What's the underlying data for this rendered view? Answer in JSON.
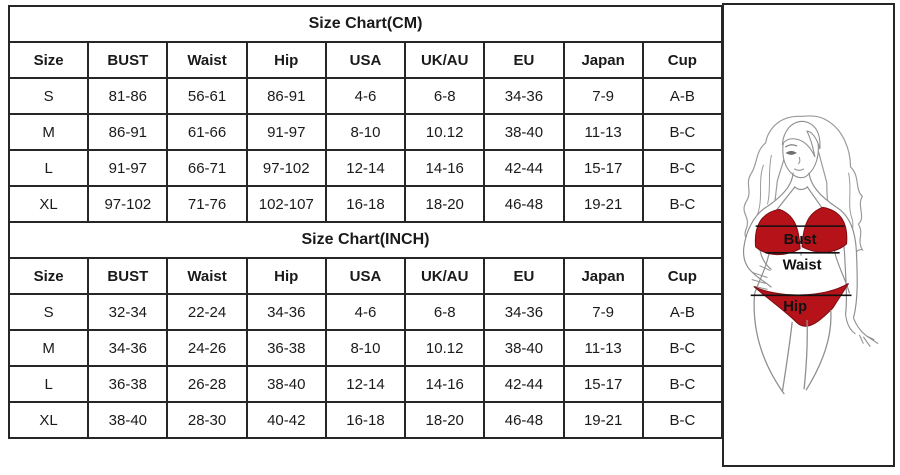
{
  "size_charts": [
    {
      "title": "Size Chart(CM)",
      "columns": [
        "Size",
        "BUST",
        "Waist",
        "Hip",
        "USA",
        "UK/AU",
        "EU",
        "Japan",
        "Cup"
      ],
      "rows": [
        [
          "S",
          "81-86",
          "56-61",
          "86-91",
          "4-6",
          "6-8",
          "34-36",
          "7-9",
          "A-B"
        ],
        [
          "M",
          "86-91",
          "61-66",
          "91-97",
          "8-10",
          "10.12",
          "38-40",
          "11-13",
          "B-C"
        ],
        [
          "L",
          "91-97",
          "66-71",
          "97-102",
          "12-14",
          "14-16",
          "42-44",
          "15-17",
          "B-C"
        ],
        [
          "XL",
          "97-102",
          "71-76",
          "102-107",
          "16-18",
          "18-20",
          "46-48",
          "19-21",
          "B-C"
        ]
      ]
    },
    {
      "title": "Size Chart(INCH)",
      "columns": [
        "Size",
        "BUST",
        "Waist",
        "Hip",
        "USA",
        "UK/AU",
        "EU",
        "Japan",
        "Cup"
      ],
      "rows": [
        [
          "S",
          "32-34",
          "22-24",
          "34-36",
          "4-6",
          "6-8",
          "34-36",
          "7-9",
          "A-B"
        ],
        [
          "M",
          "34-36",
          "24-26",
          "36-38",
          "8-10",
          "10.12",
          "38-40",
          "11-13",
          "B-C"
        ],
        [
          "L",
          "36-38",
          "26-28",
          "38-40",
          "12-14",
          "14-16",
          "42-44",
          "15-17",
          "B-C"
        ],
        [
          "XL",
          "38-40",
          "28-30",
          "40-42",
          "16-18",
          "18-20",
          "46-48",
          "19-21",
          "B-C"
        ]
      ]
    }
  ],
  "figure": {
    "labels": {
      "bust": "Bust",
      "waist": "Waist",
      "hip": "Hip"
    },
    "colors": {
      "bikini_red": "#b5121a",
      "line_art": "#8f8f8f",
      "measure_line": "#111111"
    }
  }
}
